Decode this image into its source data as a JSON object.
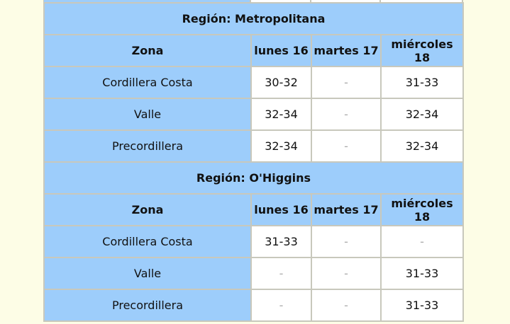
{
  "sections": [
    {
      "title": "Región: Metropolitana",
      "header": [
        "Zona",
        "lunes 16",
        "martes 17",
        "miércoles 18"
      ],
      "rows": [
        [
          "Cordillera Costa",
          "30-32",
          "-",
          "31-33"
        ],
        [
          "Valle",
          "32-34",
          "-",
          "32-34"
        ],
        [
          "Precordillera",
          "32-34",
          "-",
          "32-34"
        ]
      ]
    },
    {
      "title": "Región: O'Higgins",
      "header": [
        "Zona",
        "lunes 16",
        "martes 17",
        "miércoles 18"
      ],
      "rows": [
        [
          "Cordillera Costa",
          "31-33",
          "-",
          "-"
        ],
        [
          "Valle",
          "-",
          "-",
          "31-33"
        ],
        [
          "Precordillera",
          "-",
          "-",
          "31-33"
        ]
      ]
    }
  ]
}
